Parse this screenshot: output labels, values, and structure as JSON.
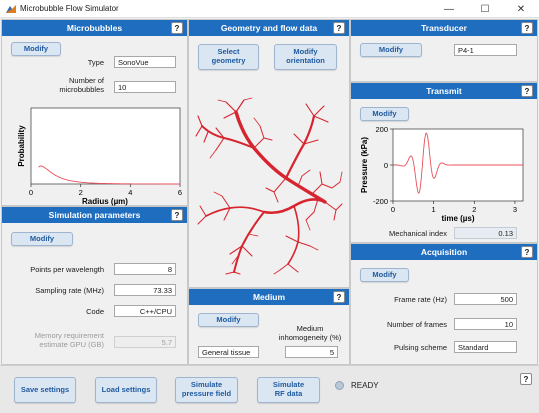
{
  "window": {
    "title": "Microbubble Flow Simulator",
    "minimize": "—",
    "maximize": "☐",
    "close": "✕"
  },
  "help": "?",
  "microbubbles": {
    "header": "Microbubbles",
    "modify": "Modify",
    "type_label": "Type",
    "type_value": "SonoVue",
    "count_label_1": "Number of",
    "count_label_2": "microbubbles",
    "count_value": "10",
    "plot": {
      "ylabel": "Probability",
      "xlabel": "Radius (µm)",
      "xticks": [
        "0",
        "2",
        "4",
        "6"
      ],
      "line_color": "#e8505b"
    }
  },
  "simulation": {
    "header": "Simulation parameters",
    "modify": "Modify",
    "ppw_label": "Points per wavelength",
    "ppw_value": "8",
    "fs_label": "Sampling rate (MHz)",
    "fs_value": "73.33",
    "code_label": "Code",
    "code_value": "C++/CPU",
    "mem_label_1": "Memory requirement",
    "mem_label_2": "estimate GPU (GB)",
    "mem_value": "5.7"
  },
  "geometry": {
    "header": "Geometry and flow data",
    "select_1": "Select",
    "select_2": "geometry",
    "orient_1": "Modify",
    "orient_2": "orientation",
    "vessel_color": "#d7252f"
  },
  "medium": {
    "header": "Medium",
    "modify": "Modify",
    "inhom_label_1": "Medium",
    "inhom_label_2": "inhomogeneity (%)",
    "tissue_value": "General tissue",
    "inhom_value": "5"
  },
  "transducer": {
    "header": "Transducer",
    "modify": "Modify",
    "value": "P4-1"
  },
  "transmit": {
    "header": "Transmit",
    "modify": "Modify",
    "plot": {
      "ylabel": "Pressure (kPa)",
      "xlabel": "time (µs)",
      "yticks": [
        "200",
        "0",
        "-200"
      ],
      "xticks": [
        "0",
        "1",
        "2",
        "3"
      ],
      "line_color": "#e8505b"
    },
    "mi_label": "Mechanical index",
    "mi_value": "0.13"
  },
  "acquisition": {
    "header": "Acquisition",
    "modify": "Modify",
    "fr_label": "Frame rate (Hz)",
    "fr_value": "500",
    "nf_label": "Number of frames",
    "nf_value": "10",
    "ps_label": "Pulsing scheme",
    "ps_value": "Standard"
  },
  "bottom": {
    "save": "Save settings",
    "load": "Load settings",
    "sim_p_1": "Simulate",
    "sim_p_2": "pressure field",
    "sim_rf_1": "Simulate",
    "sim_rf_2": "RF data",
    "status": "READY"
  }
}
